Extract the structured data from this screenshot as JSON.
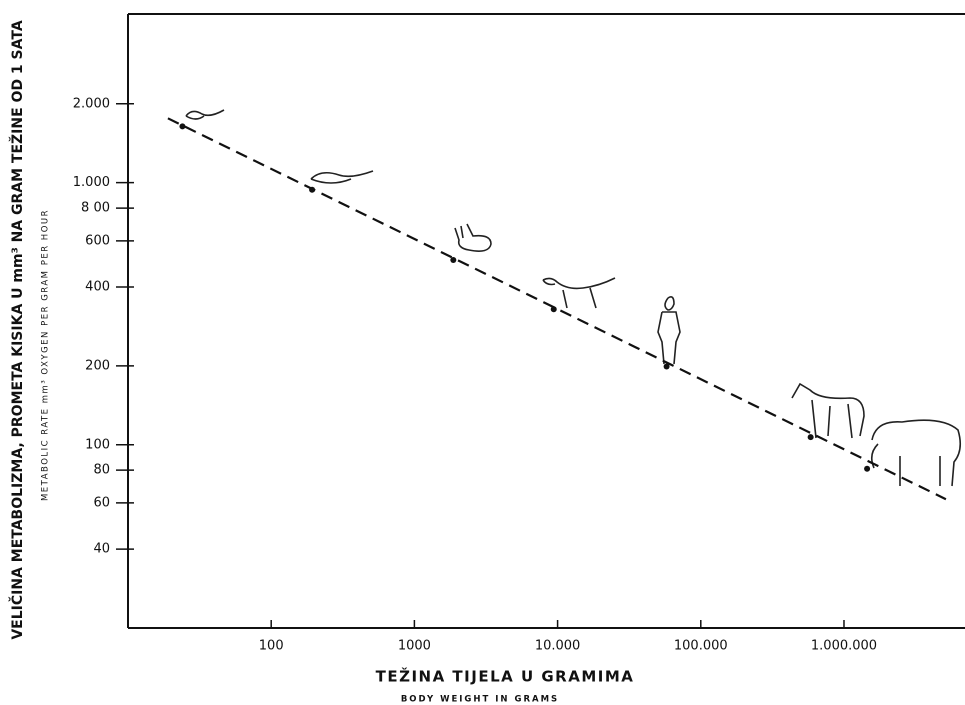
{
  "chart_data": {
    "type": "scatter",
    "y_label": "VELIČINA METABOLIZMA, PROMETA KISIKA U mm³ NA GRAM TEŽINE OD 1 SATA",
    "y_sublabel": "METABOLIC RATE mm³ OXYGEN PER GRAM PER HOUR",
    "x_label": "TEŽINA TIJELA U GRAMIMA",
    "x_sublabel": "BODY WEIGHT IN GRAMS",
    "xscale": "log",
    "yscale": "log",
    "xlim": [
      10,
      7000000
    ],
    "ylim": [
      20,
      4400
    ],
    "xticks": [
      100,
      1000,
      {
        "value": 10000,
        "label": "10.000"
      },
      {
        "value": 100000,
        "label": "100.000"
      },
      {
        "value": 1000000,
        "label": "1.000.000"
      }
    ],
    "yticks": [
      {
        "value": 2000,
        "label": "2.000"
      },
      {
        "value": 1000,
        "label": "1.000"
      },
      {
        "value": 800,
        "label": "8 00"
      },
      600,
      400,
      200,
      100,
      80,
      60,
      40
    ],
    "color": "#111111",
    "x": [
      24,
      193,
      1870,
      9400,
      57700,
      585000,
      1450000
    ],
    "values": [
      1640,
      940,
      507,
      329,
      199,
      107,
      81
    ],
    "trend": {
      "x": [
        19,
        5150000
      ],
      "y": [
        1760,
        62
      ],
      "dashed": true
    }
  }
}
